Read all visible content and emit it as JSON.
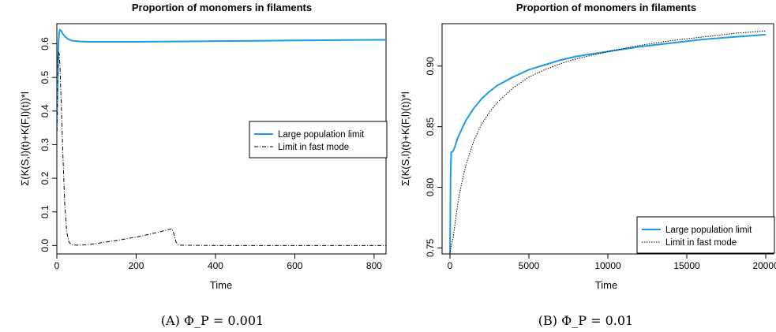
{
  "chart_data": [
    {
      "type": "line",
      "title": "Proportion of monomers in filaments",
      "xlabel": "Time",
      "ylabel": "Σ(K(S,l)(t)+K(F,l)(t))*l",
      "caption": "(A) Φ_P = 0.001",
      "xlim": [
        0,
        830
      ],
      "ylim": [
        -0.025,
        0.66
      ],
      "xticks": [
        0,
        200,
        400,
        600,
        800
      ],
      "yticks": [
        0.0,
        0.1,
        0.2,
        0.3,
        0.4,
        0.5,
        0.6
      ],
      "legend": {
        "placement": "right"
      },
      "series": [
        {
          "name": "Large population limit",
          "color": "#1E9BE0",
          "style": "solid",
          "x": [
            0,
            2,
            4,
            6,
            8,
            10,
            15,
            20,
            30,
            40,
            60,
            80,
            100,
            150,
            200,
            300,
            400,
            500,
            600,
            700,
            800,
            830
          ],
          "y": [
            0.34,
            0.5,
            0.6,
            0.635,
            0.642,
            0.64,
            0.63,
            0.622,
            0.613,
            0.609,
            0.607,
            0.606,
            0.606,
            0.606,
            0.606,
            0.607,
            0.608,
            0.609,
            0.61,
            0.611,
            0.612,
            0.612
          ]
        },
        {
          "name": "Limit in fast mode",
          "color": "#000000",
          "style": "dashdot",
          "x": [
            0,
            2,
            4,
            6,
            8,
            10,
            15,
            20,
            25,
            30,
            35,
            40,
            50,
            60,
            80,
            100,
            150,
            200,
            250,
            280,
            290,
            295,
            300,
            305,
            310,
            400,
            600,
            800,
            830
          ],
          "y": [
            0.34,
            0.48,
            0.575,
            0.57,
            0.53,
            0.46,
            0.28,
            0.12,
            0.04,
            0.012,
            0.004,
            0.002,
            0.001,
            0.001,
            0.003,
            0.006,
            0.015,
            0.025,
            0.038,
            0.047,
            0.05,
            0.035,
            0.012,
            0.003,
            0.001,
            0.0,
            0.0,
            0.0,
            0.0
          ]
        }
      ]
    },
    {
      "type": "line",
      "title": "Proportion of monomers in filaments",
      "xlabel": "Time",
      "ylabel": "Σ(K(S,l)(t)+K(F,l)(t))*l",
      "caption": "(B) Φ_P = 0.01",
      "xlim": [
        -500,
        20500
      ],
      "ylim": [
        0.745,
        0.935
      ],
      "xticks": [
        0,
        5000,
        10000,
        15000,
        20000
      ],
      "yticks": [
        0.75,
        0.8,
        0.85,
        0.9
      ],
      "legend": {
        "placement": "bottom-right"
      },
      "series": [
        {
          "name": "Large population limit",
          "color": "#1E9BE0",
          "style": "solid",
          "x": [
            0,
            40,
            80,
            120,
            200,
            300,
            500,
            750,
            1000,
            1500,
            2000,
            2500,
            3000,
            4000,
            5000,
            6000,
            7000,
            8000,
            10000,
            12000,
            14000,
            16000,
            18000,
            20000
          ],
          "y": [
            0.745,
            0.81,
            0.829,
            0.829,
            0.83,
            0.833,
            0.841,
            0.848,
            0.855,
            0.865,
            0.873,
            0.879,
            0.884,
            0.891,
            0.897,
            0.901,
            0.905,
            0.908,
            0.912,
            0.916,
            0.919,
            0.922,
            0.924,
            0.926
          ]
        },
        {
          "name": "Limit in fast mode",
          "color": "#000000",
          "style": "dotted",
          "x": [
            0,
            50,
            100,
            200,
            300,
            500,
            750,
            1000,
            1500,
            2000,
            2500,
            3000,
            4000,
            5000,
            6000,
            7000,
            8000,
            10000,
            12000,
            14000,
            16000,
            18000,
            20000
          ],
          "y": [
            0.745,
            0.75,
            0.753,
            0.758,
            0.768,
            0.787,
            0.804,
            0.818,
            0.838,
            0.852,
            0.862,
            0.87,
            0.882,
            0.891,
            0.897,
            0.902,
            0.906,
            0.912,
            0.917,
            0.921,
            0.924,
            0.927,
            0.929
          ]
        }
      ]
    }
  ]
}
